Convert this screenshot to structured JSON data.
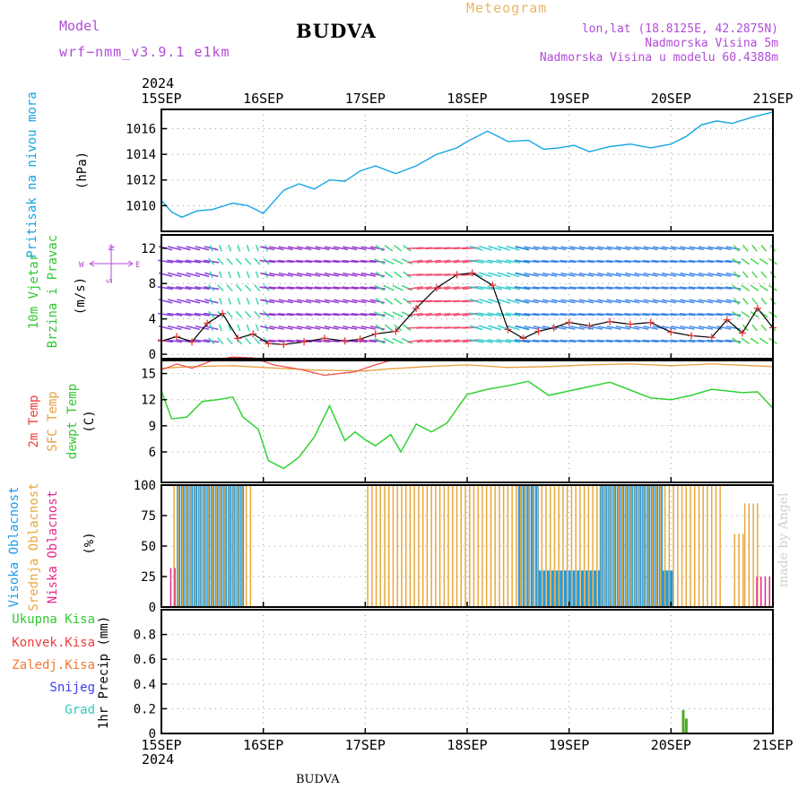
{
  "header": {
    "model_label": "Model",
    "model_version": "wrf−nmm_v3.9.1  e1km",
    "title": "BUDVA",
    "subtitle": "Meteogram",
    "lonlat": "lon,lat (18.8125E, 42.2875N)",
    "elevation": "Nadmorska Visina 5m",
    "model_elevation": "Nadmorska Visina u modelu 60.4388m",
    "year_top": "2024",
    "year_bottom": "2024",
    "bottom_name": "BUDVA",
    "watermark": "made by Angel"
  },
  "chart_data": [
    {
      "type": "line",
      "panel": "pressure",
      "ylabel": "Pritisak na nivou mora",
      "unit": "(hPa)",
      "xlabels": [
        "15SEP",
        "16SEP",
        "17SEP",
        "18SEP",
        "19SEP",
        "20SEP",
        "21SEP"
      ],
      "ylim": [
        1008,
        1017.5
      ],
      "yticks": [
        1010,
        1012,
        1014,
        1016
      ],
      "grid": true,
      "series": [
        {
          "color": "#14a5e6",
          "x": [
            0,
            0.1,
            0.2,
            0.35,
            0.5,
            0.7,
            0.85,
            1.0,
            1.1,
            1.2,
            1.35,
            1.5,
            1.65,
            1.8,
            1.95,
            2.1,
            2.3,
            2.5,
            2.7,
            2.9,
            3.0,
            3.2,
            3.4,
            3.6,
            3.75,
            3.9,
            4.05,
            4.2,
            4.4,
            4.6,
            4.8,
            5.0,
            5.15,
            5.3,
            5.45,
            5.6,
            5.8,
            6.0
          ],
          "y": [
            1010.4,
            1009.5,
            1009.1,
            1009.6,
            1009.7,
            1010.2,
            1010.0,
            1009.4,
            1010.3,
            1011.2,
            1011.7,
            1011.3,
            1012.0,
            1011.9,
            1012.7,
            1013.1,
            1012.5,
            1013.1,
            1014.0,
            1014.5,
            1015.0,
            1015.8,
            1015.0,
            1015.1,
            1014.4,
            1014.5,
            1014.7,
            1014.2,
            1014.6,
            1014.8,
            1014.5,
            1014.8,
            1015.4,
            1016.3,
            1016.6,
            1016.4,
            1016.9,
            1017.3
          ]
        }
      ]
    },
    {
      "type": "line",
      "panel": "wind",
      "ylabel": "10m Vjetar Brzina i Pravac",
      "unit": "(m/s)",
      "compass": [
        "W",
        "E",
        "N",
        "S"
      ],
      "ylim": [
        -0.5,
        13.5
      ],
      "yticks": [
        0,
        4,
        8,
        12
      ],
      "grid": true,
      "series": [
        {
          "color": "#000000",
          "x": [
            0,
            0.15,
            0.3,
            0.45,
            0.6,
            0.75,
            0.9,
            1.05,
            1.2,
            1.4,
            1.6,
            1.8,
            1.95,
            2.1,
            2.3,
            2.5,
            2.7,
            2.9,
            3.05,
            3.25,
            3.4,
            3.55,
            3.7,
            3.85,
            4.0,
            4.2,
            4.4,
            4.6,
            4.8,
            5.0,
            5.2,
            5.4,
            5.55,
            5.7,
            5.85,
            6.0
          ],
          "y": [
            1.5,
            2.0,
            1.4,
            3.5,
            4.6,
            1.8,
            2.3,
            1.2,
            1.1,
            1.4,
            1.8,
            1.5,
            1.7,
            2.3,
            2.6,
            5.2,
            7.5,
            9.0,
            9.2,
            7.8,
            2.8,
            1.8,
            2.6,
            3.0,
            3.6,
            3.2,
            3.7,
            3.4,
            3.6,
            2.5,
            2.1,
            1.9,
            3.9,
            2.4,
            5.2,
            3.0
          ]
        }
      ]
    },
    {
      "type": "line",
      "panel": "temperature",
      "ylabel": [
        "2m Temp",
        "SFC Temp",
        "dewpt Temp"
      ],
      "unit": "(C)",
      "ylim": [
        2.5,
        16.5
      ],
      "yticks": [
        6,
        9,
        12,
        15
      ],
      "grid": true,
      "series": [
        {
          "color": "#f05050",
          "x": [
            0,
            0.15,
            0.3,
            0.5,
            0.7,
            0.9,
            1.1,
            1.35,
            1.6,
            1.9,
            2.1,
            2.25
          ],
          "y": [
            15.4,
            16.1,
            15.6,
            16.5,
            16.9,
            16.8,
            16.0,
            15.5,
            14.8,
            15.2,
            16.0,
            16.5
          ]
        },
        {
          "color": "#e8a040",
          "x": [
            0,
            0.3,
            0.7,
            1.0,
            1.5,
            2.0,
            2.2,
            2.6,
            3.0,
            3.4,
            3.8,
            4.2,
            4.6,
            5.0,
            5.4,
            5.8,
            6.0
          ],
          "y": [
            15.6,
            15.8,
            15.9,
            15.7,
            15.4,
            15.3,
            15.5,
            15.8,
            16.0,
            15.7,
            15.8,
            16.0,
            16.1,
            15.9,
            16.1,
            15.9,
            15.8
          ]
        },
        {
          "color": "#32d232",
          "x": [
            0,
            0.1,
            0.25,
            0.4,
            0.55,
            0.7,
            0.8,
            0.95,
            1.05,
            1.2,
            1.35,
            1.5,
            1.65,
            1.8,
            1.9,
            2.0,
            2.1,
            2.25,
            2.35,
            2.5,
            2.65,
            2.8,
            3.0,
            3.2,
            3.4,
            3.6,
            3.8,
            4.0,
            4.2,
            4.4,
            4.6,
            4.8,
            5.0,
            5.2,
            5.4,
            5.55,
            5.7,
            5.85,
            6.0
          ],
          "y": [
            13.0,
            9.8,
            10.0,
            11.8,
            12.0,
            12.3,
            10.0,
            8.6,
            5.0,
            4.1,
            5.4,
            7.7,
            11.3,
            7.3,
            8.3,
            7.4,
            6.7,
            8.0,
            6.0,
            9.2,
            8.3,
            9.3,
            12.6,
            13.2,
            13.6,
            14.1,
            12.5,
            13.0,
            13.5,
            14.0,
            13.1,
            12.2,
            12.0,
            12.5,
            13.2,
            13.0,
            12.8,
            12.9,
            11.0
          ]
        }
      ]
    },
    {
      "type": "bar",
      "panel": "cloud",
      "ylabel": [
        "Visoka Oblacnost",
        "Srednja Oblacnost",
        "Niska Oblacnost"
      ],
      "unit": "(%)",
      "ylim": [
        0,
        100
      ],
      "yticks": [
        0,
        25,
        50,
        75,
        100
      ],
      "grid": true,
      "series": [
        {
          "color": "#1e9be6",
          "segments": [
            [
              0.15,
              0.8,
              100
            ],
            [
              3.5,
              3.7,
              100
            ],
            [
              3.7,
              4.3,
              30
            ],
            [
              4.3,
              4.9,
              100
            ],
            [
              4.9,
              5.0,
              30
            ]
          ]
        },
        {
          "color": "#e8a83c",
          "segments": [
            [
              0.1,
              0.85,
              100
            ],
            [
              2.0,
              5.5,
              100
            ],
            [
              5.6,
              5.7,
              60
            ],
            [
              5.7,
              5.85,
              85
            ]
          ]
        },
        {
          "color": "#e8288c",
          "segments": [
            [
              0.05,
              0.1,
              32
            ],
            [
              5.8,
              5.95,
              25
            ]
          ]
        }
      ]
    },
    {
      "type": "bar",
      "panel": "precipitation",
      "ylabel": "1hr Precip",
      "unit": "(mm)",
      "legend": [
        "Ukupna Kisa",
        "Konvek.Kisa",
        "Zaledj.Kisa",
        "Snijeg",
        "Grad"
      ],
      "legend_colors": [
        "#32c832",
        "#f03c3c",
        "#f07832",
        "#3c3cf0",
        "#32c8b4"
      ],
      "ylim": [
        0,
        1.0
      ],
      "yticks": [
        0,
        0.2,
        0.4,
        0.6,
        0.8
      ],
      "grid": true,
      "series": [
        {
          "color": "#50aa28",
          "x": [
            5.12,
            5.15
          ],
          "y": [
            0.19,
            0.12
          ]
        }
      ]
    }
  ]
}
